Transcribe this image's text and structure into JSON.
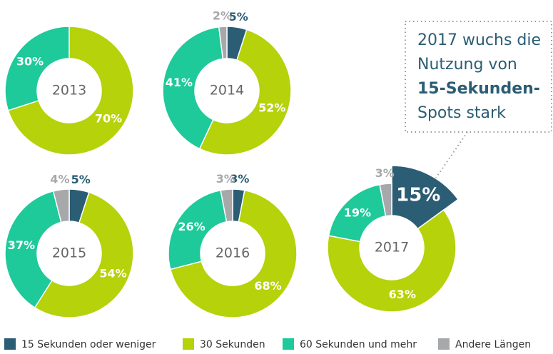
{
  "chart_data": {
    "type": "donut",
    "categories": [
      "2013",
      "2014",
      "2015",
      "2016",
      "2017"
    ],
    "series": [
      {
        "name": "15 Sekunden oder weniger",
        "color": "#2b5d74",
        "values": [
          null,
          5,
          5,
          3,
          15
        ],
        "value_labels": [
          null,
          "5%",
          "5%",
          "3%",
          "15%"
        ]
      },
      {
        "name": "30 Sekunden",
        "color": "#b5d20a",
        "values": [
          70,
          52,
          54,
          68,
          63
        ],
        "value_labels": [
          "70%",
          "52%",
          "54%",
          "68%",
          "63%"
        ]
      },
      {
        "name": "60 Sekunden und mehr",
        "color": "#1ec99a",
        "values": [
          30,
          41,
          37,
          26,
          19
        ],
        "value_labels": [
          "30%",
          "41%",
          "37%",
          "26%",
          "19%"
        ]
      },
      {
        "name": "Andere Längen",
        "color": "#a6a8aa",
        "values": [
          null,
          2,
          4,
          3,
          3
        ],
        "value_labels": [
          null,
          "2%",
          "4%",
          "3%",
          "3%"
        ]
      }
    ],
    "annotation": [
      "2017 wuchs die",
      "Nutzung von",
      "15-Sekunden-",
      "Spots stark"
    ]
  }
}
